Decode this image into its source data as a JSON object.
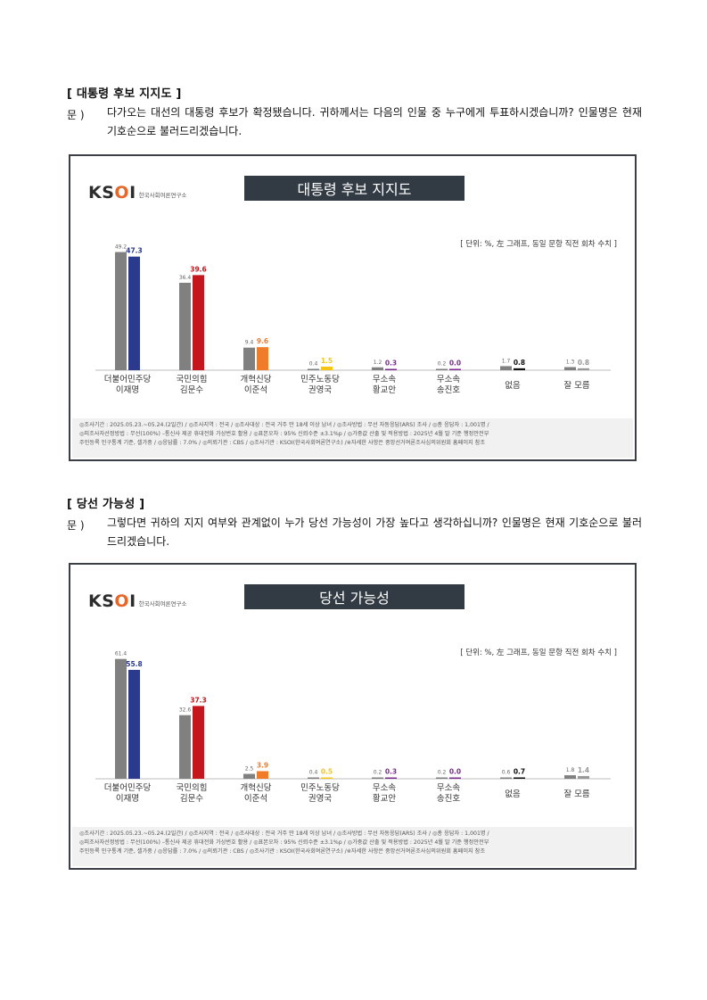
{
  "sections": [
    {
      "title": "[ 대통령 후보 지지도 ]",
      "q_label": "문 )",
      "question": "다가오는 대선의 대통령 후보가 확정됐습니다. 귀하께서는 다음의 인물 중 누구에게 투표하시겠습니까? 인물명은 현재 기호순으로 불러드리겠습니다.",
      "chart": {
        "logo": "KSOI",
        "logo_sub": "한국사회여론연구소",
        "banner": "대통령 후보 지지도",
        "unit_note": "[ 단위: %, 左 그래프, 동일 문항 직전 회차 수치 ]",
        "footer_lines": [
          "◎조사기간 : 2025.05.23.~05.24.(2일간) / ◎조사지역 : 전국 / ◎조사대상 : 전국 거주 만 18세 이상 남녀 / ◎조사방법 : 무선 자동응답(ARS) 조사 / ◎총 응답자 : 1,001명 /",
          "◎피조사자선정방법 : 무선(100%) –통신사 제공 휴대전화 가상번호 활용 / ◎표본오차 : 95% 신뢰수준 ±3.1%p / ◎가중값 산출 및 적용방법 : 2025년 4월 말 기준 행정안전부",
          "주민등록 인구통계 기준, 셀가중 / ◎응답률 : 7.0% / ◎의뢰기관 : CBS / ◎조사기관 : KSOI(한국사회여론연구소) /※자세한 사항은 중앙선거여론조사심의위원회 홈페이지 참조"
        ]
      }
    },
    {
      "title": "[ 당선 가능성 ]",
      "q_label": "문 )",
      "question": "그렇다면 귀하의 지지 여부와 관계없이 누가 당선 가능성이 가장 높다고 생각하십니까? 인물명은 현재 기호순으로 불러드리겠습니다.",
      "chart": {
        "logo": "KSOI",
        "logo_sub": "한국사회여론연구소",
        "banner": "당선 가능성",
        "unit_note": "[ 단위: %, 左 그래프, 동일 문항 직전 회차 수치 ]",
        "footer_lines": [
          "◎조사기간 : 2025.05.23.~05.24.(2일간) / ◎조사지역 : 전국 / ◎조사대상 : 전국 거주 만 18세 이상 남녀 / ◎조사방법 : 무선 자동응답(ARS) 조사 / ◎총 응답자 : 1,001명 /",
          "◎피조사자선정방법 : 무선(100%) –통신사 제공 휴대전화 가상번호 활용 / ◎표본오차 : 95% 신뢰수준 ±3.1%p / ◎가중값 산출 및 적용방법 : 2025년 4월 말 기준 행정안전부",
          "주민등록 인구통계 기준, 셀가중 / ◎응답률 : 7.0% / ◎의뢰기관 : CBS / ◎조사기관 : KSOI(한국사회여론연구소) /※자세한 사항은 중앙선거여론조사심의위원회 홈페이지 참조"
        ]
      }
    }
  ],
  "chart_data": [
    {
      "type": "bar",
      "title": "대통령 후보 지지도",
      "categories": [
        [
          "더불어민주당",
          "이재명"
        ],
        [
          "국민의힘",
          "김문수"
        ],
        [
          "개혁신당",
          "이준석"
        ],
        [
          "민주노동당",
          "권영국"
        ],
        [
          "무소속",
          "황교안"
        ],
        [
          "무소속",
          "송진호"
        ],
        [
          "없음"
        ],
        [
          "잘 모름"
        ]
      ],
      "series": [
        {
          "color": "#808080",
          "values": [
            49.2,
            36.4,
            9.4,
            0.4,
            1.2,
            0.2,
            1.7,
            1.3
          ],
          "labels": [
            "49.2",
            "36.4",
            "9.4",
            "0.4",
            "1.2",
            "0.2",
            "1.7",
            "1.3"
          ]
        },
        {
          "values": [
            47.3,
            39.6,
            9.6,
            1.5,
            0.3,
            0.0,
            0.8,
            0.8
          ],
          "labels": [
            "47.3",
            "39.6",
            "9.6",
            "1.5",
            "0.3",
            "0.0",
            "0.8",
            "0.8"
          ],
          "colors": [
            "#2b3a8c",
            "#c4161c",
            "#f07c2a",
            "#f5c518",
            "#7b2d8e",
            "#7b2d8e",
            "#111111",
            "#999999"
          ]
        }
      ],
      "ylim": [
        0,
        52
      ]
    },
    {
      "type": "bar",
      "title": "당선 가능성",
      "categories": [
        [
          "더불어민주당",
          "이재명"
        ],
        [
          "국민의힘",
          "김문수"
        ],
        [
          "개혁신당",
          "이준석"
        ],
        [
          "민주노동당",
          "권영국"
        ],
        [
          "무소속",
          "황교안"
        ],
        [
          "무소속",
          "송진호"
        ],
        [
          "없음"
        ],
        [
          "잘 모름"
        ]
      ],
      "series": [
        {
          "color": "#808080",
          "values": [
            61.4,
            32.6,
            2.5,
            0.4,
            0.2,
            0.2,
            0.6,
            1.8
          ],
          "labels": [
            "61.4",
            "32.6",
            "2.5",
            "0.4",
            "0.2",
            "0.2",
            "0.6",
            "1.8"
          ]
        },
        {
          "values": [
            55.8,
            37.3,
            3.9,
            0.5,
            0.3,
            0.0,
            0.7,
            1.4
          ],
          "labels": [
            "55.8",
            "37.3",
            "3.9",
            "0.5",
            "0.3",
            "0.0",
            "0.7",
            "1.4"
          ],
          "colors": [
            "#2b3a8c",
            "#c4161c",
            "#f07c2a",
            "#f5c518",
            "#7b2d8e",
            "#7b2d8e",
            "#111111",
            "#999999"
          ]
        }
      ],
      "ylim": [
        0,
        64
      ]
    }
  ]
}
